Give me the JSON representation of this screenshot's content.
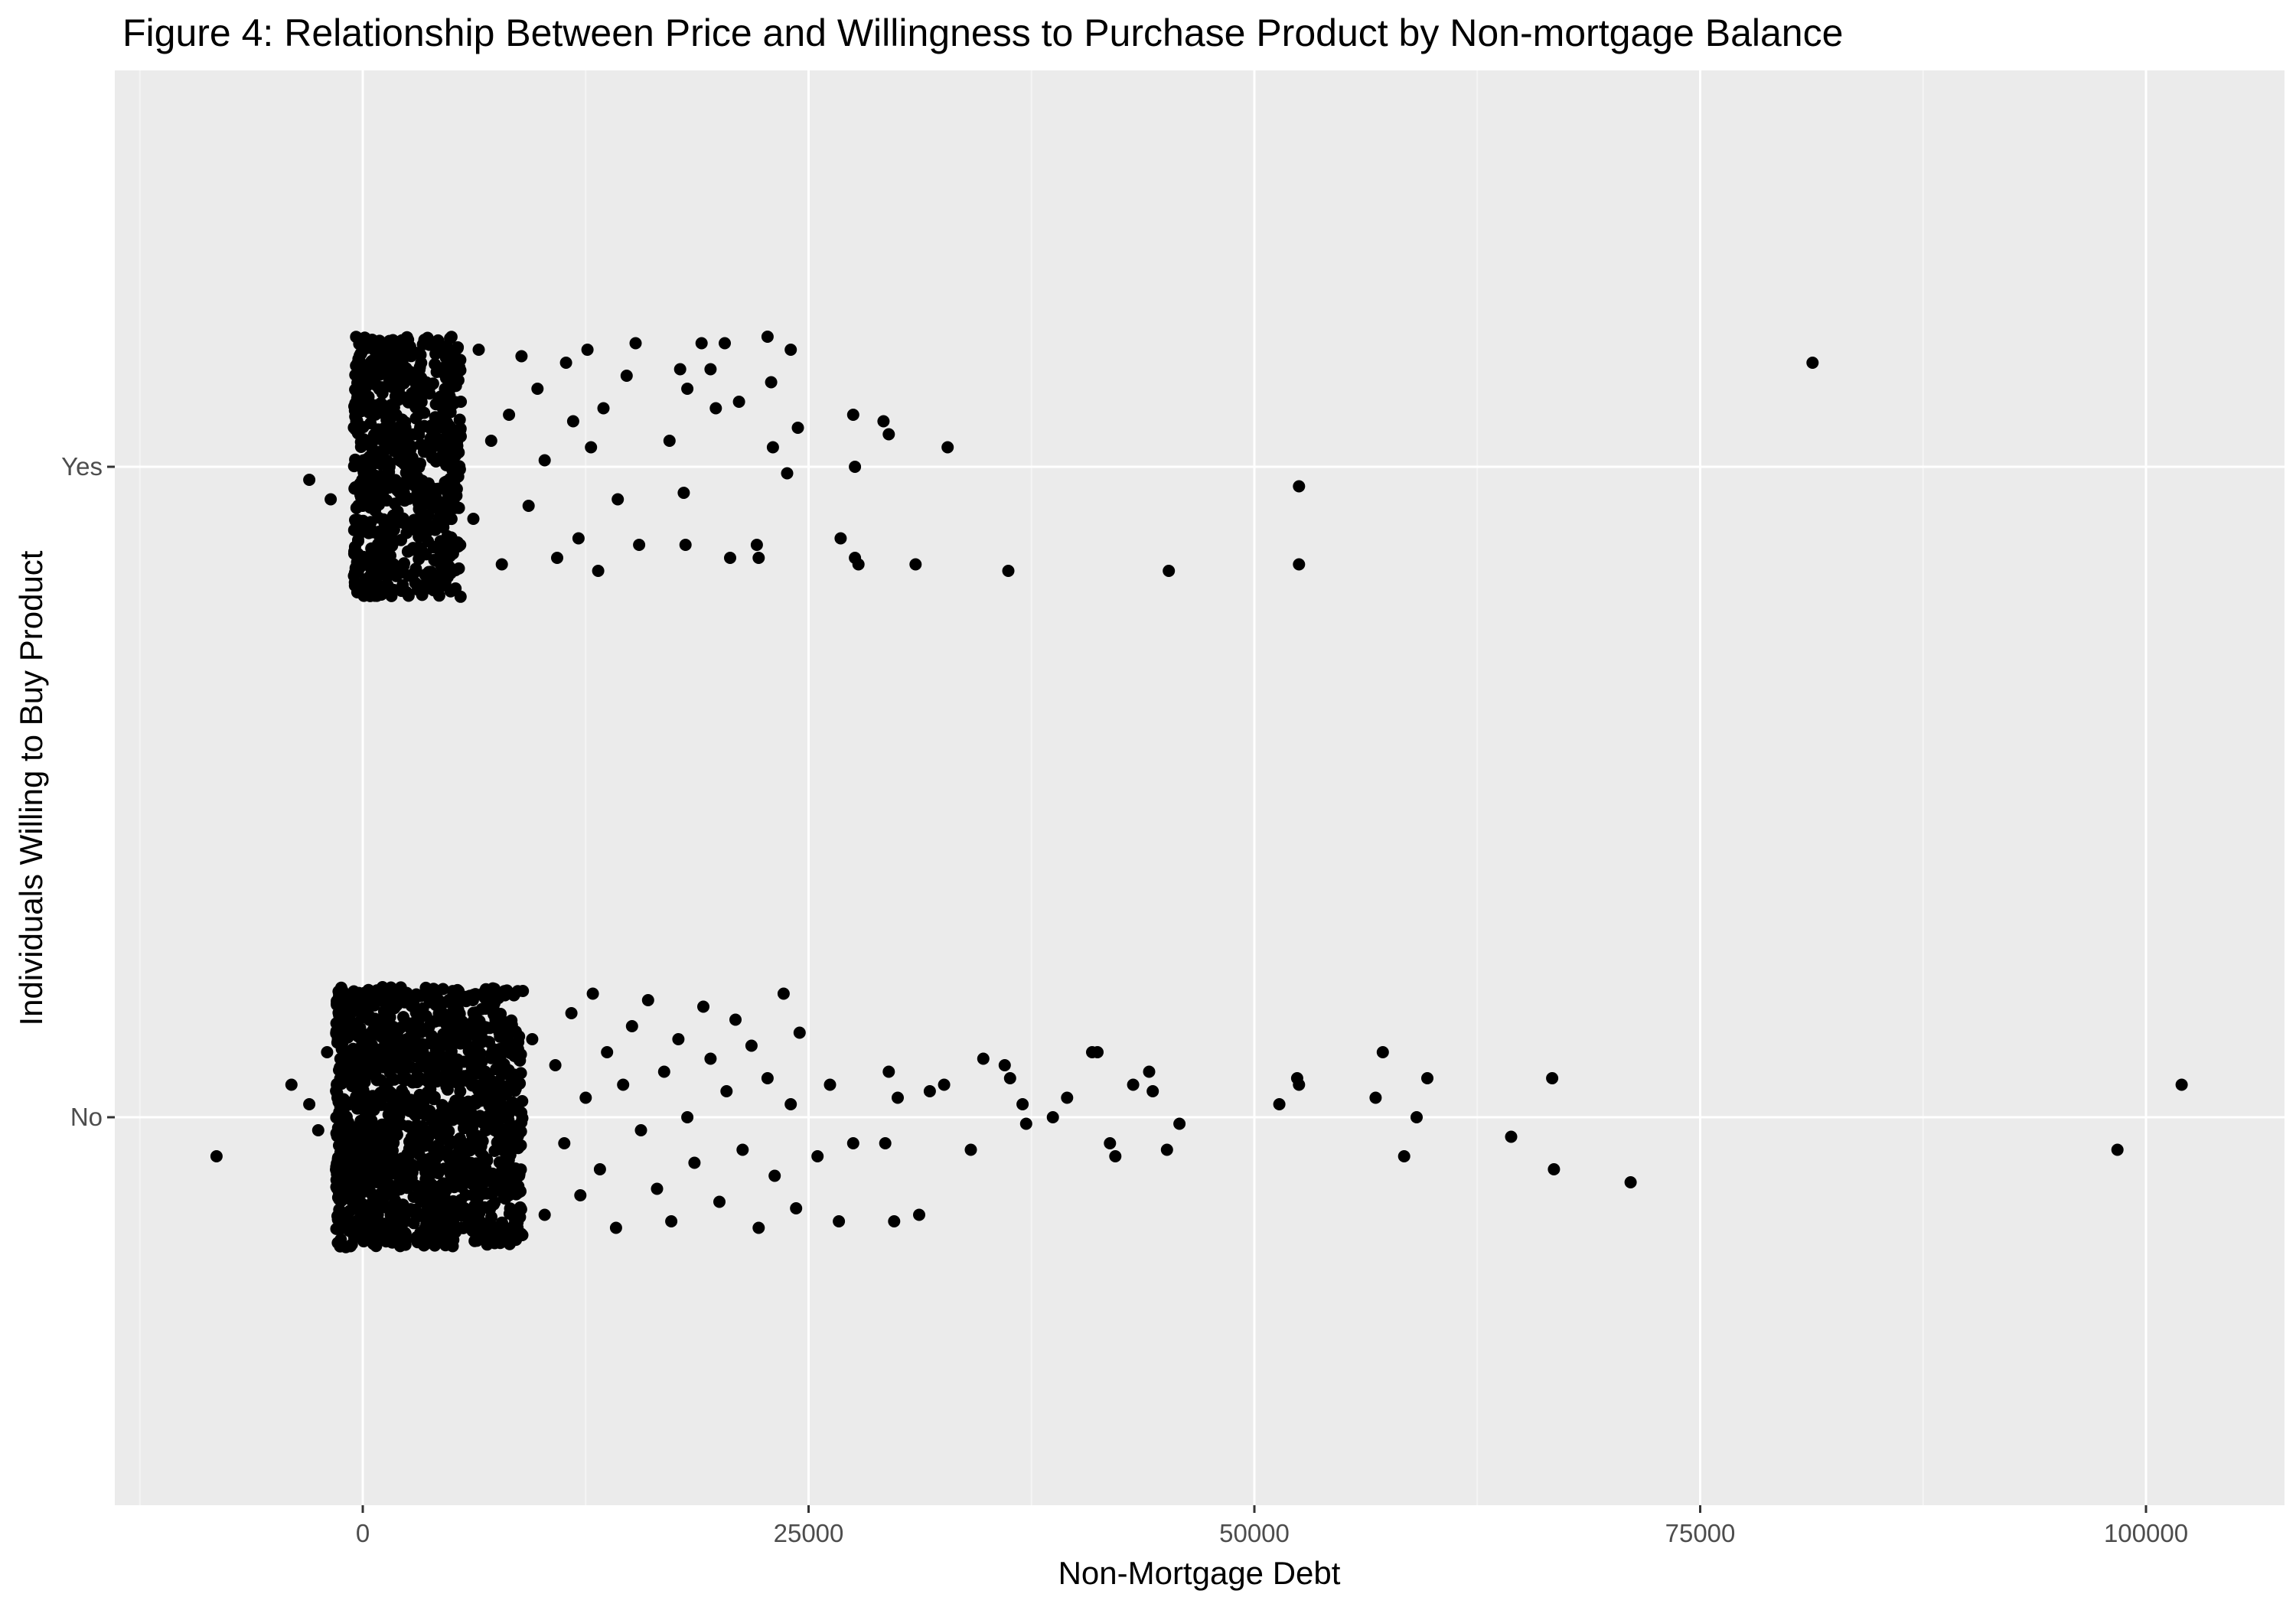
{
  "chart_data": {
    "type": "scatter",
    "title": "Figure 4: Relationship Between Price and Willingness to Purchase Product by Non-mortgage Balance",
    "xlabel": "Non-Mortgage Debt",
    "ylabel": "Individuals Willing to Buy Product",
    "categories": [
      "No",
      "Yes"
    ],
    "xlim": [
      -12500,
      105000
    ],
    "x_ticks": [
      0,
      25000,
      50000,
      75000,
      100000
    ],
    "x_tick_labels": [
      "0",
      "25000",
      "50000",
      "75000",
      "100000"
    ],
    "jitter": "vertical jitter of ±0.2 around each category",
    "grid": true,
    "legend": "none",
    "colors": {
      "panel_background": "#ebebeb",
      "grid_major": "#ffffff",
      "grid_minor": "#f4f4f4",
      "points": "#000000",
      "tick_text": "#4d4d4d",
      "tick_marks": "#333333"
    },
    "series": [
      {
        "category": "Yes",
        "dense_cluster_x_range": [
          -500,
          5500
        ],
        "points": [
          [
            -3000,
            -0.02
          ],
          [
            -1800,
            -0.05
          ],
          [
            -200,
            0.06
          ],
          [
            500,
            0.13
          ],
          [
            1200,
            -0.12
          ],
          [
            2500,
            0.18
          ],
          [
            3600,
            -0.1
          ],
          [
            4500,
            0.02
          ],
          [
            5500,
            0.1
          ],
          [
            6200,
            -0.08
          ],
          [
            6500,
            0.18
          ],
          [
            7200,
            0.04
          ],
          [
            7800,
            -0.15
          ],
          [
            8200,
            0.08
          ],
          [
            8900,
            0.17
          ],
          [
            9300,
            -0.06
          ],
          [
            9800,
            0.12
          ],
          [
            10200,
            0.01
          ],
          [
            10900,
            -0.14
          ],
          [
            11400,
            0.16
          ],
          [
            11800,
            0.07
          ],
          [
            12100,
            -0.11
          ],
          [
            12600,
            0.18
          ],
          [
            12800,
            0.03
          ],
          [
            13200,
            -0.16
          ],
          [
            13500,
            0.09
          ],
          [
            14300,
            -0.05
          ],
          [
            14800,
            0.14
          ],
          [
            15300,
            0.19
          ],
          [
            15500,
            -0.12
          ],
          [
            17200,
            0.04
          ],
          [
            17800,
            0.15
          ],
          [
            18000,
            -0.04
          ],
          [
            18100,
            -0.12
          ],
          [
            18200,
            0.12
          ],
          [
            19000,
            0.19
          ],
          [
            19500,
            0.15
          ],
          [
            19800,
            0.09
          ],
          [
            20300,
            0.19
          ],
          [
            20600,
            -0.14
          ],
          [
            21100,
            0.1
          ],
          [
            22100,
            -0.12
          ],
          [
            22200,
            -0.14
          ],
          [
            22700,
            0.2
          ],
          [
            22900,
            0.13
          ],
          [
            23000,
            0.03
          ],
          [
            23800,
            -0.01
          ],
          [
            24000,
            0.18
          ],
          [
            24400,
            0.06
          ],
          [
            26800,
            -0.11
          ],
          [
            27500,
            0.08
          ],
          [
            27600,
            0.0
          ],
          [
            27600,
            -0.14
          ],
          [
            27800,
            -0.15
          ],
          [
            29200,
            0.07
          ],
          [
            29500,
            0.05
          ],
          [
            31000,
            -0.15
          ],
          [
            32800,
            0.03
          ],
          [
            36200,
            -0.16
          ],
          [
            45200,
            -0.16
          ],
          [
            52500,
            -0.15
          ],
          [
            52500,
            -0.03
          ],
          [
            81300,
            0.16
          ]
        ]
      },
      {
        "category": "No",
        "dense_cluster_x_range": [
          -1500,
          9000
        ],
        "points": [
          [
            -8200,
            -0.06
          ],
          [
            -4000,
            0.05
          ],
          [
            -3000,
            0.02
          ],
          [
            -2500,
            -0.02
          ],
          [
            -2000,
            0.1
          ],
          [
            -1500,
            -0.08
          ],
          [
            9500,
            0.12
          ],
          [
            10200,
            -0.15
          ],
          [
            10800,
            0.08
          ],
          [
            11300,
            -0.04
          ],
          [
            11700,
            0.16
          ],
          [
            12200,
            -0.12
          ],
          [
            12500,
            0.03
          ],
          [
            12900,
            0.19
          ],
          [
            13300,
            -0.08
          ],
          [
            13700,
            0.1
          ],
          [
            14200,
            -0.17
          ],
          [
            14600,
            0.05
          ],
          [
            15100,
            0.14
          ],
          [
            15600,
            -0.02
          ],
          [
            16000,
            0.18
          ],
          [
            16500,
            -0.11
          ],
          [
            16900,
            0.07
          ],
          [
            17300,
            -0.16
          ],
          [
            17700,
            0.12
          ],
          [
            18200,
            0.0
          ],
          [
            18600,
            -0.07
          ],
          [
            19100,
            0.17
          ],
          [
            19500,
            0.09
          ],
          [
            20000,
            -0.13
          ],
          [
            20400,
            0.04
          ],
          [
            20900,
            0.15
          ],
          [
            21300,
            -0.05
          ],
          [
            21800,
            0.11
          ],
          [
            22200,
            -0.17
          ],
          [
            22700,
            0.06
          ],
          [
            23100,
            -0.09
          ],
          [
            23600,
            0.19
          ],
          [
            24000,
            0.02
          ],
          [
            24300,
            -0.14
          ],
          [
            24500,
            0.13
          ],
          [
            25500,
            -0.06
          ],
          [
            26200,
            0.05
          ],
          [
            26700,
            -0.16
          ],
          [
            27500,
            -0.04
          ],
          [
            29300,
            -0.04
          ],
          [
            29500,
            0.07
          ],
          [
            29800,
            -0.16
          ],
          [
            30000,
            0.03
          ],
          [
            31200,
            -0.15
          ],
          [
            31800,
            0.04
          ],
          [
            32600,
            0.05
          ],
          [
            34100,
            -0.05
          ],
          [
            34800,
            0.09
          ],
          [
            36000,
            0.08
          ],
          [
            36300,
            0.06
          ],
          [
            37000,
            0.02
          ],
          [
            37200,
            -0.01
          ],
          [
            38700,
            0.0
          ],
          [
            39500,
            0.03
          ],
          [
            40900,
            0.1
          ],
          [
            41200,
            0.1
          ],
          [
            41900,
            -0.04
          ],
          [
            42200,
            -0.06
          ],
          [
            43200,
            0.05
          ],
          [
            44100,
            0.07
          ],
          [
            44300,
            0.04
          ],
          [
            45100,
            -0.05
          ],
          [
            45800,
            -0.01
          ],
          [
            51400,
            0.02
          ],
          [
            52400,
            0.06
          ],
          [
            52500,
            0.05
          ],
          [
            56800,
            0.03
          ],
          [
            57200,
            0.1
          ],
          [
            58400,
            -0.06
          ],
          [
            59100,
            0.0
          ],
          [
            59700,
            0.06
          ],
          [
            64400,
            -0.03
          ],
          [
            66700,
            0.06
          ],
          [
            66800,
            -0.08
          ],
          [
            71100,
            -0.1
          ],
          [
            98400,
            -0.05
          ],
          [
            102000,
            0.05
          ]
        ]
      }
    ]
  }
}
